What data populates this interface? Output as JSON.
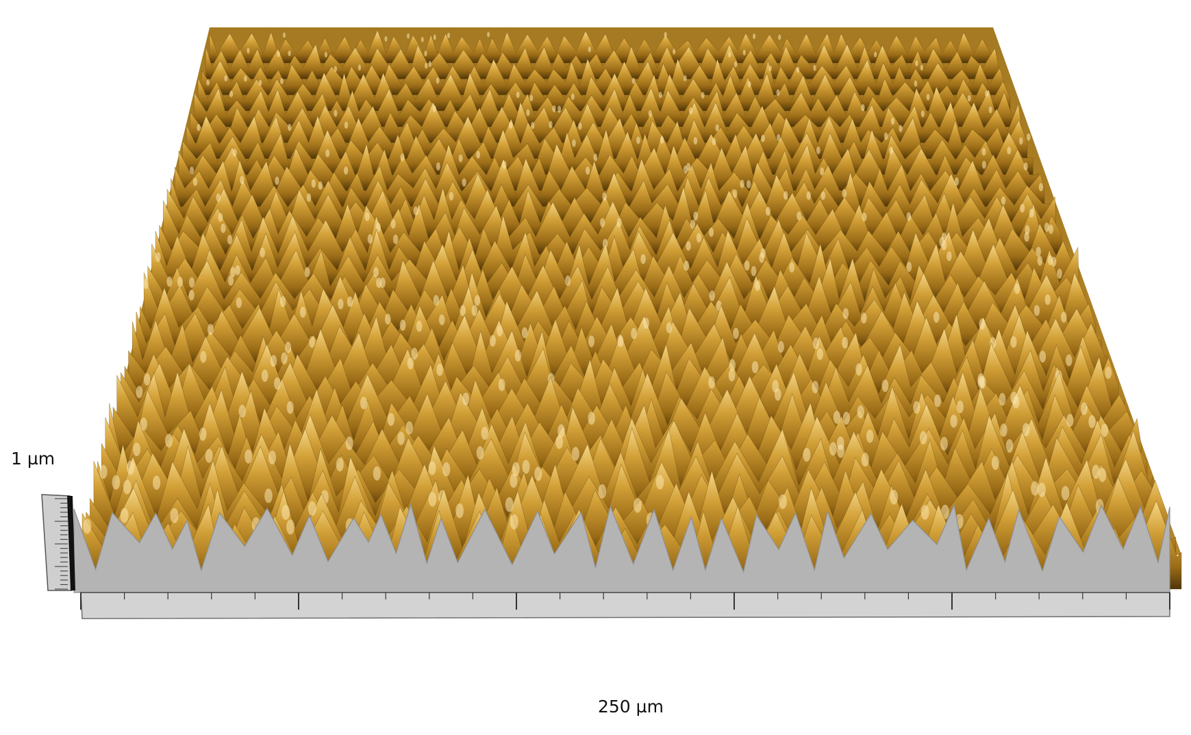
{
  "surface": {
    "colors": {
      "peak_highlight": "#fbe6ad",
      "mid": "#c69426",
      "valley": "#3a2606",
      "base_wall": "#b4b4b4",
      "base_floor": "#d3d3d3",
      "scale_bar": "#cfcfcf"
    }
  },
  "scale": {
    "z_label": "1 µm",
    "x_label": "250 µm"
  }
}
